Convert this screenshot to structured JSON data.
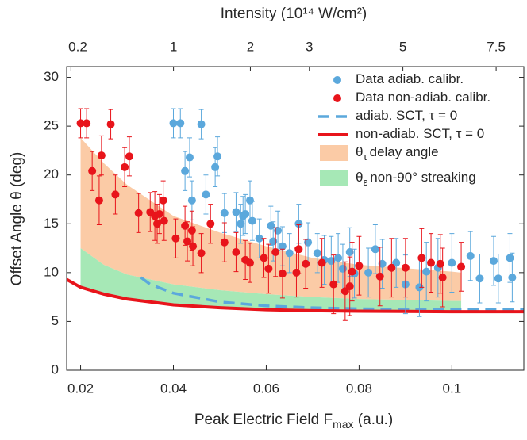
{
  "chart_data": {
    "type": "scatter",
    "x2label": "Intensity (10¹⁴ W/cm²)",
    "xlabel": {
      "text": "Peak Electric Field F",
      "sub": "max",
      "after": " (a.u.)"
    },
    "ylabel": "Offset Angle θ (deg)",
    "xlim": [
      0.017,
      0.1155
    ],
    "ylim": [
      0,
      31.1
    ],
    "xticks": [
      0.02,
      0.04,
      0.06,
      0.08,
      0.1
    ],
    "yticks": [
      0,
      5,
      10,
      15,
      20,
      25,
      30
    ],
    "x2lim": [
      0.18,
      8.34
    ],
    "x2scale": "sqrt",
    "x2ticks": [
      0.2,
      1,
      2,
      3,
      5,
      7.5
    ],
    "series": [
      {
        "name": "Data adiab. calibr.",
        "kind": "errorbar",
        "color": "#5ba8dc",
        "x": [
          0.04,
          0.0415,
          0.0425,
          0.0435,
          0.044,
          0.046,
          0.047,
          0.049,
          0.0495,
          0.051,
          0.0535,
          0.0545,
          0.055,
          0.0555,
          0.0565,
          0.057,
          0.0585,
          0.061,
          0.0615,
          0.0625,
          0.0635,
          0.065,
          0.067,
          0.069,
          0.071,
          0.0725,
          0.074,
          0.0755,
          0.0765,
          0.078,
          0.079,
          0.082,
          0.0835,
          0.085,
          0.088,
          0.09,
          0.093,
          0.0945,
          0.097,
          0.1,
          0.104,
          0.106,
          0.109,
          0.11,
          0.1125,
          0.113
        ],
        "y": [
          25.3,
          25.3,
          20.4,
          21.8,
          17.4,
          25.2,
          18.0,
          20.8,
          21.9,
          16.1,
          16.2,
          15.0,
          15.8,
          16.0,
          17.4,
          15.3,
          13.5,
          14.8,
          13.2,
          14.3,
          12.7,
          12.0,
          15.0,
          13.1,
          12.0,
          11.3,
          11.2,
          11.5,
          10.4,
          12.1,
          9.9,
          10.0,
          12.4,
          10.9,
          11.0,
          8.8,
          8.5,
          10.1,
          10.5,
          11.0,
          11.7,
          9.4,
          11.2,
          9.4,
          11.5,
          9.5
        ],
        "err": [
          1.5,
          1.5,
          2,
          2,
          2,
          1.5,
          2,
          2,
          2,
          2,
          2,
          2,
          2,
          2,
          2,
          2,
          2,
          2,
          2,
          2,
          2,
          2,
          2,
          2,
          2,
          2.5,
          2.5,
          2.5,
          2.5,
          2.5,
          2.5,
          2.5,
          2.5,
          2.5,
          2.5,
          3,
          3,
          3,
          3,
          3,
          2.5,
          2.5,
          2.5,
          2.5,
          2.5,
          2.5
        ]
      },
      {
        "name": "Data non-adiab. calibr.",
        "kind": "errorbar",
        "color": "#e8141b",
        "x": [
          0.02,
          0.0213,
          0.0225,
          0.024,
          0.0245,
          0.0265,
          0.0275,
          0.0295,
          0.0305,
          0.0325,
          0.035,
          0.036,
          0.0365,
          0.037,
          0.0378,
          0.038,
          0.0405,
          0.0425,
          0.043,
          0.044,
          0.0442,
          0.046,
          0.048,
          0.051,
          0.0535,
          0.0555,
          0.0565,
          0.0595,
          0.0605,
          0.062,
          0.0635,
          0.0665,
          0.067,
          0.0685,
          0.072,
          0.0745,
          0.077,
          0.078,
          0.0785,
          0.08,
          0.0845,
          0.087,
          0.09,
          0.0935,
          0.0955,
          0.0975,
          0.098,
          0.102
        ],
        "y": [
          25.3,
          25.3,
          20.4,
          17.4,
          22.0,
          25.2,
          18.0,
          20.8,
          21.9,
          16.1,
          16.2,
          15.8,
          15.0,
          16.0,
          17.4,
          15.3,
          13.5,
          14.8,
          13.2,
          14.3,
          12.7,
          12.0,
          15.0,
          13.1,
          12.1,
          11.3,
          11.0,
          11.5,
          10.4,
          12.1,
          9.9,
          10.0,
          12.4,
          10.9,
          11.0,
          8.8,
          8.1,
          8.6,
          10.1,
          10.7,
          9.6,
          10.5,
          10.5,
          11.5,
          11.0,
          10.9,
          9.5,
          10.6
        ],
        "err": [
          1.5,
          1.5,
          2,
          2.5,
          2,
          1.5,
          2,
          2,
          2,
          2,
          2,
          2.5,
          2,
          2,
          2,
          2,
          2,
          2,
          2,
          2,
          2,
          2,
          2,
          2,
          2,
          2,
          2,
          2,
          2.5,
          2.5,
          2.5,
          2.5,
          2.5,
          2.5,
          2.5,
          3,
          3,
          3,
          3,
          3,
          3,
          3,
          3,
          3,
          3,
          3,
          3,
          2.5
        ]
      },
      {
        "name": "adiab. SCT, τ = 0",
        "kind": "line",
        "dash": true,
        "color": "#5ba8dc",
        "x": [
          0.033,
          0.035,
          0.04,
          0.05,
          0.06,
          0.07,
          0.08,
          0.1,
          0.1155
        ],
        "y": [
          9.5,
          8.8,
          7.9,
          7.0,
          6.6,
          6.4,
          6.3,
          6.2,
          6.2
        ]
      },
      {
        "name": "non-adiab. SCT, τ = 0",
        "kind": "line",
        "dash": false,
        "color": "#e8141b",
        "x": [
          0.017,
          0.02,
          0.025,
          0.03,
          0.04,
          0.05,
          0.06,
          0.07,
          0.08,
          0.1,
          0.1155
        ],
        "y": [
          9.3,
          8.5,
          7.8,
          7.3,
          6.7,
          6.4,
          6.2,
          6.1,
          6.05,
          6.0,
          6.0
        ]
      },
      {
        "name": "delay angle",
        "symbol": "θ",
        "sub": "τ",
        "kind": "band",
        "color": "#fbcba6",
        "x": [
          0.02,
          0.025,
          0.03,
          0.04,
          0.05,
          0.06,
          0.07,
          0.08,
          0.1,
          0.102
        ],
        "low": [
          12.5,
          10.8,
          9.8,
          8.8,
          8.2,
          7.8,
          7.5,
          7.3,
          7.1,
          7.1
        ],
        "high": [
          23.8,
          21.2,
          19.0,
          15.8,
          14.1,
          12.7,
          11.5,
          10.8,
          10.1,
          10.0
        ]
      },
      {
        "name": "non-90° streaking",
        "symbol": "θ",
        "sub": "ε",
        "kind": "band",
        "color": "#a6e8b6",
        "x": [
          0.02,
          0.025,
          0.03,
          0.04,
          0.05,
          0.06,
          0.07,
          0.08,
          0.1,
          0.102
        ],
        "low": [
          8.5,
          7.8,
          7.3,
          6.7,
          6.4,
          6.2,
          6.1,
          6.05,
          6.0,
          6.0
        ],
        "high": [
          12.5,
          10.8,
          9.8,
          8.8,
          8.2,
          7.8,
          7.5,
          7.3,
          7.1,
          7.1
        ]
      }
    ]
  }
}
